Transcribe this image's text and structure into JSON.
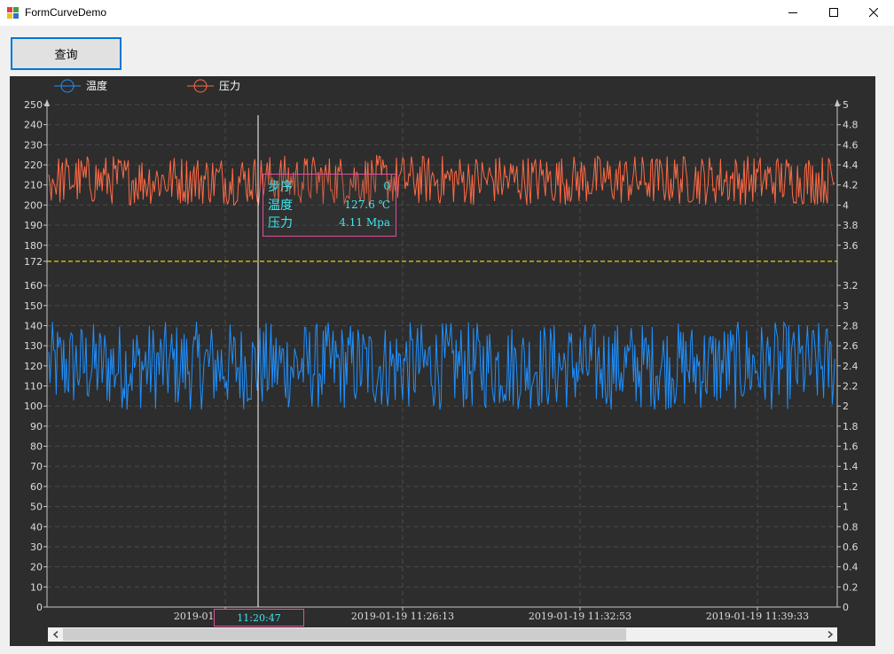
{
  "window": {
    "title": "FormCurveDemo",
    "controls": [
      "minimize-icon",
      "maximize-icon",
      "close-icon"
    ]
  },
  "toolbar": {
    "query_label": "查询"
  },
  "colors": {
    "temperature": "#1e90ff",
    "pressure": "#ff6a45",
    "reference_line": "#e6d200",
    "highlight": "#3ee8ee",
    "tooltip_border": "#e0509f",
    "axis": "#c8c8c8",
    "grid": "#4a4a4a",
    "background": "#2d2d2d"
  },
  "tooltip": {
    "rows": [
      {
        "label": "步序",
        "value": "0"
      },
      {
        "label": "温度",
        "value": "127.6 ℃"
      },
      {
        "label": "压力",
        "value": "4.11 Mpa"
      }
    ]
  },
  "cursor": {
    "x_label": "11:20:47"
  },
  "chart_data": {
    "type": "line",
    "legend": [
      {
        "name": "温度",
        "color": "#1e90ff"
      },
      {
        "name": "压力",
        "color": "#ff6a45"
      }
    ],
    "legend_position": "top-left",
    "grid": true,
    "y_left": {
      "range": [
        0,
        250
      ],
      "ticks": [
        "0",
        "10",
        "20",
        "30",
        "40",
        "50",
        "60",
        "70",
        "80",
        "90",
        "100",
        "110",
        "120",
        "130",
        "140",
        "150",
        "160",
        "172",
        "180",
        "190",
        "200",
        "210",
        "220",
        "230",
        "240",
        "250"
      ]
    },
    "y_right": {
      "range": [
        0,
        5
      ],
      "ticks": [
        "0",
        "0.2",
        "0.4",
        "0.6",
        "0.8",
        "1",
        "1.2",
        "1.4",
        "1.6",
        "1.8",
        "2",
        "2.2",
        "2.4",
        "2.6",
        "2.8",
        "3",
        "3.2",
        "3.6",
        "3.8",
        "4",
        "4.2",
        "4.4",
        "4.6",
        "4.8",
        "5"
      ]
    },
    "x_ticks": [
      "2019-01-19 11:20:47",
      "2019-01-19 11:26:13",
      "2019-01-19 11:32:53",
      "2019-01-19 11:39:33"
    ],
    "reference_line": {
      "axis": "left",
      "value": 172
    },
    "series": [
      {
        "name": "温度",
        "axis": "left",
        "range": [
          98,
          142
        ]
      },
      {
        "name": "压力",
        "axis": "right",
        "range": [
          4.0,
          4.5
        ]
      }
    ]
  }
}
